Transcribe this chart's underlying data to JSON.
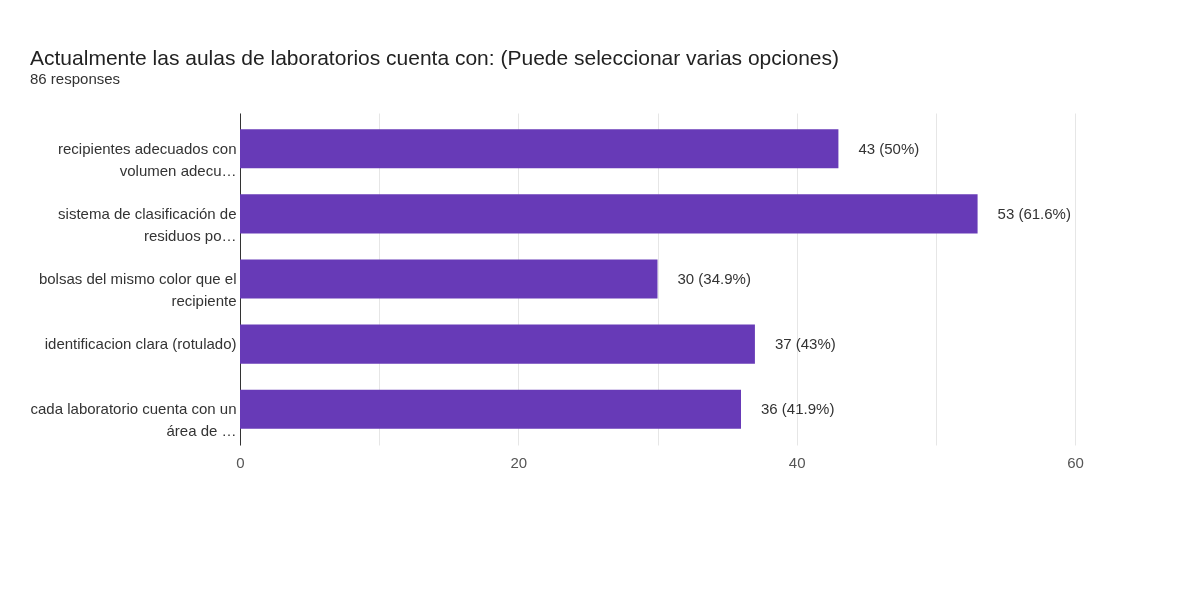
{
  "chart_data": {
    "type": "bar",
    "orientation": "horizontal",
    "title": "Actualmente las aulas de laboratorios cuenta con: (Puede seleccionar varias opciones)",
    "subtitle": "86 responses",
    "categories": [
      "recipientes adecuados con volumen adecu…",
      "sistema de clasificación de residuos po…",
      "bolsas del mismo color que el recipiente",
      "identificacion clara (rotulado)",
      "cada laboratorio cuenta con un área de …"
    ],
    "values": [
      43,
      53,
      30,
      37,
      36
    ],
    "value_labels": [
      "43 (50%)",
      "53 (61.6%)",
      "30 (34.9%)",
      "37 (43%)",
      "36 (41.9%)"
    ],
    "color": "#673ab7",
    "xlim": [
      0,
      60
    ],
    "xticks": [
      0,
      {
        "value": 10,
        "label": null
      },
      20,
      {
        "value": 30,
        "label": null
      },
      40,
      {
        "value": 50,
        "label": null
      },
      60
    ],
    "grid": "x"
  }
}
